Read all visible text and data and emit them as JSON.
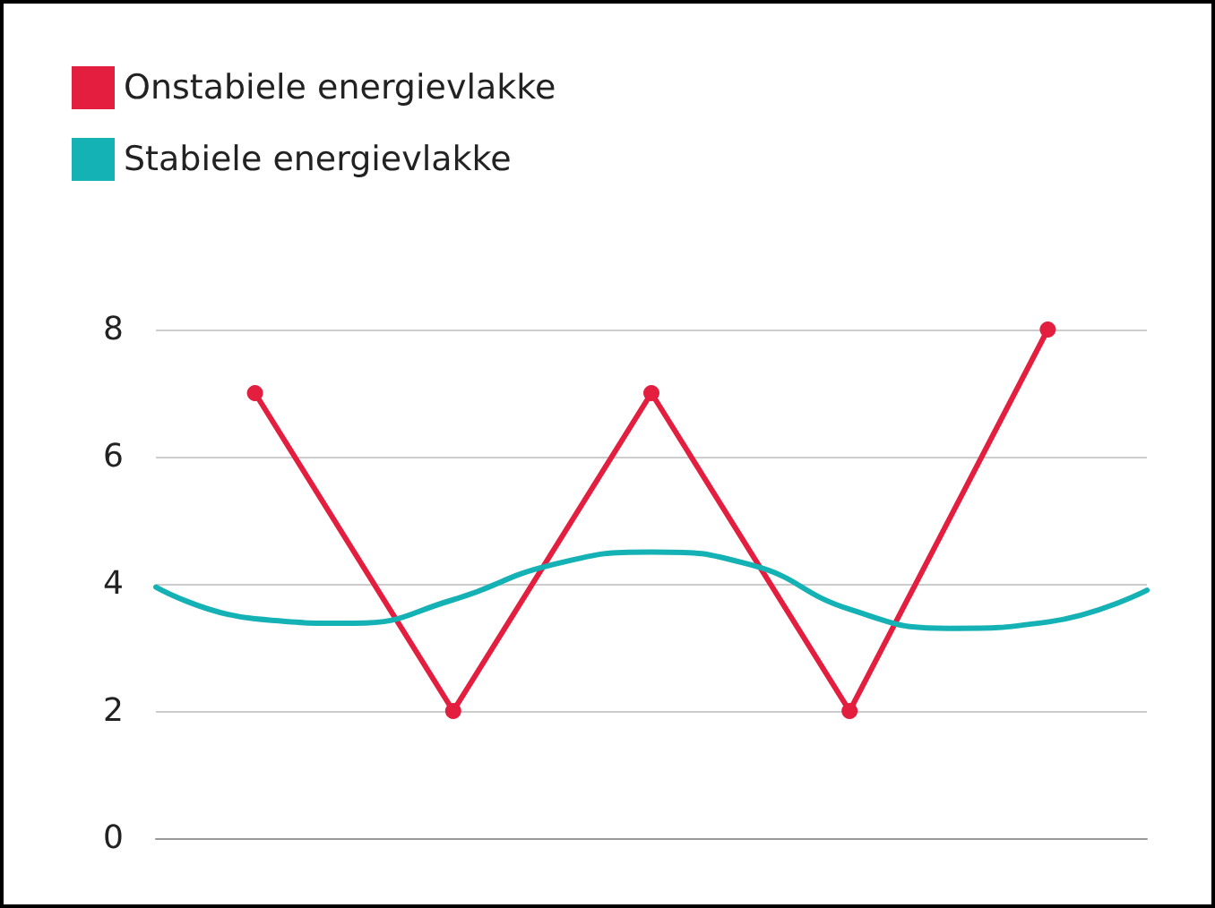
{
  "chart_data": {
    "type": "line",
    "categories": [
      null,
      null,
      null,
      null,
      null,
      null,
      null,
      null,
      null,
      null,
      null
    ],
    "series": [
      {
        "name": "Onstabiele energievlakke",
        "color": "#e31e3f",
        "marker": "circle",
        "values": [
          null,
          7,
          null,
          2,
          null,
          7,
          null,
          2,
          null,
          8,
          null
        ]
      },
      {
        "name": "Stabiele energievlakke",
        "color": "#14b1b5",
        "marker": "none",
        "values": [
          3.95,
          3.45,
          3.38,
          3.75,
          4.3,
          4.5,
          4.3,
          3.6,
          3.3,
          3.4,
          3.9
        ]
      }
    ],
    "ylim": [
      0,
      8
    ],
    "yticks": [
      0,
      2,
      4,
      6,
      8
    ],
    "grid": "y",
    "legend": "top left",
    "line_style": "solid"
  }
}
